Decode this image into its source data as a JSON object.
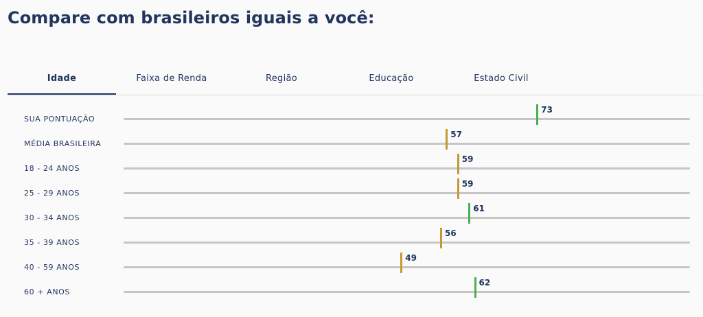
{
  "page": {
    "title": "Compare com brasileiros iguais a você:"
  },
  "tabs": [
    {
      "label": "Idade",
      "active": true
    },
    {
      "label": "Faixa de Renda",
      "active": false
    },
    {
      "label": "Região",
      "active": false
    },
    {
      "label": "Educação",
      "active": false
    },
    {
      "label": "Estado Civil",
      "active": false
    }
  ],
  "scale": {
    "min": 0,
    "max": 100
  },
  "colors": {
    "above": "#4caf50",
    "below": "#c39a2f",
    "track": "#c6c6c6",
    "text": "#22355f"
  },
  "rows": [
    {
      "label": "SUA PONTUAÇÃO",
      "value": 73,
      "status": "above"
    },
    {
      "label": "MÉDIA BRASILEIRA",
      "value": 57,
      "status": "below"
    },
    {
      "label": "18 - 24 ANOS",
      "value": 59,
      "status": "below"
    },
    {
      "label": "25 - 29 ANOS",
      "value": 59,
      "status": "below"
    },
    {
      "label": "30 - 34 ANOS",
      "value": 61,
      "status": "above"
    },
    {
      "label": "35 - 39 ANOS",
      "value": 56,
      "status": "below"
    },
    {
      "label": "40 - 59 ANOS",
      "value": 49,
      "status": "below"
    },
    {
      "label": "60 + ANOS",
      "value": 62,
      "status": "above"
    }
  ]
}
